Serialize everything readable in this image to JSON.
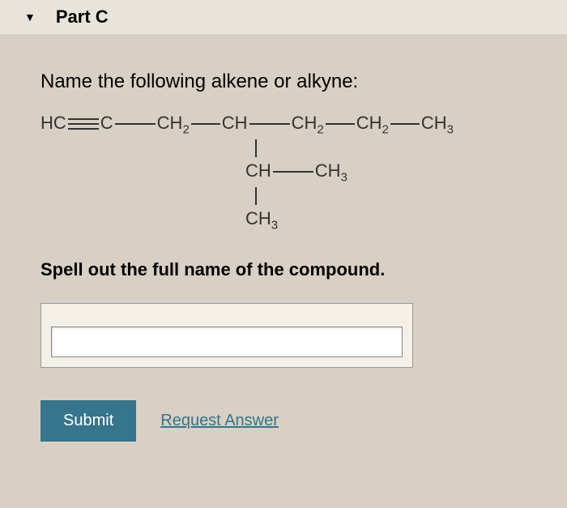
{
  "header": {
    "part_label": "Part C"
  },
  "question": {
    "prompt": "Name the following alkene or alkyne:",
    "instruction": "Spell out the full name of the compound."
  },
  "chem": {
    "line1_prefix": "HC",
    "line1_c": "C",
    "line1_ch2a": "CH",
    "line1_ch": "CH",
    "line1_ch2b": "CH",
    "line1_ch2c": "CH",
    "line1_ch3": "CH",
    "sub2": "2",
    "sub3": "3",
    "line2_ch": "CH",
    "line2_ch3": "CH",
    "line3_ch3": "CH"
  },
  "input": {
    "value": "",
    "placeholder": ""
  },
  "buttons": {
    "submit_label": "Submit",
    "request_label": "Request Answer"
  },
  "colors": {
    "page_bg": "#d8d0c4",
    "header_bg": "#e8e4dc",
    "submit_bg": "#36758b",
    "link_color": "#36758b",
    "input_box_bg": "#f4f0e8"
  }
}
